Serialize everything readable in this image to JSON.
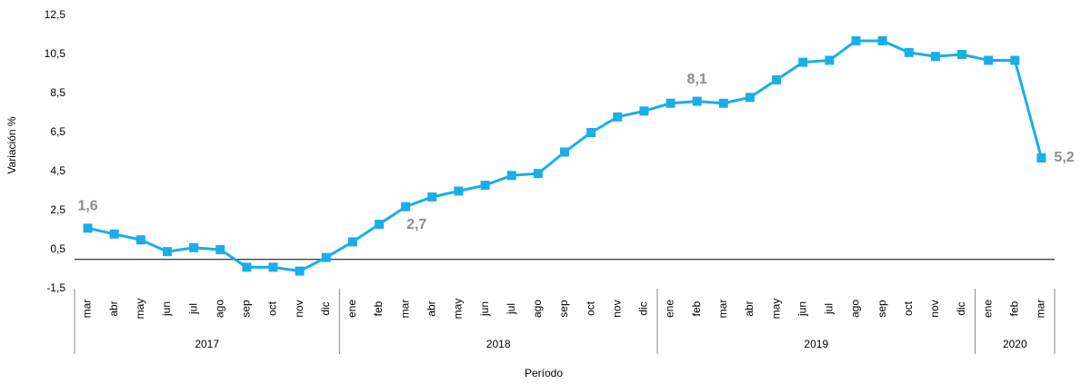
{
  "chart_data": {
    "type": "line",
    "y_label": "Variación %",
    "x_label": "Período",
    "categories": [
      "mar",
      "abr",
      "may",
      "jun",
      "jul",
      "ago",
      "sep",
      "oct",
      "nov",
      "dic",
      "ene",
      "feb",
      "mar",
      "abr",
      "may",
      "jun",
      "jul",
      "ago",
      "sep",
      "oct",
      "nov",
      "dic",
      "ene",
      "feb",
      "mar",
      "abr",
      "may",
      "jun",
      "jul",
      "ago",
      "sep",
      "oct",
      "nov",
      "dic",
      "ene",
      "feb",
      "mar"
    ],
    "years": [
      "2017",
      "2017",
      "2017",
      "2017",
      "2017",
      "2017",
      "2017",
      "2017",
      "2017",
      "2017",
      "2018",
      "2018",
      "2018",
      "2018",
      "2018",
      "2018",
      "2018",
      "2018",
      "2018",
      "2018",
      "2018",
      "2018",
      "2019",
      "2019",
      "2019",
      "2019",
      "2019",
      "2019",
      "2019",
      "2019",
      "2019",
      "2019",
      "2019",
      "2019",
      "2020",
      "2020",
      "2020"
    ],
    "series": [
      {
        "color": "#19aee8",
        "values": [
          1.6,
          1.3,
          1.0,
          0.4,
          0.6,
          0.5,
          -0.4,
          -0.4,
          -0.6,
          0.1,
          0.9,
          1.8,
          2.7,
          3.2,
          3.5,
          3.8,
          4.3,
          4.4,
          5.5,
          6.5,
          7.3,
          7.6,
          8.0,
          8.1,
          8.0,
          8.3,
          9.2,
          10.1,
          10.2,
          11.2,
          11.2,
          10.6,
          10.4,
          10.5,
          10.2,
          10.2,
          5.2
        ],
        "value_labels": [
          "1,6",
          null,
          null,
          null,
          null,
          null,
          null,
          null,
          null,
          null,
          null,
          null,
          "2,7",
          null,
          null,
          null,
          null,
          null,
          null,
          null,
          null,
          null,
          null,
          "8,1",
          null,
          null,
          null,
          null,
          null,
          null,
          null,
          null,
          null,
          null,
          null,
          null,
          "5,2"
        ]
      }
    ],
    "ylim": [
      -1.5,
      12.5
    ],
    "yticks": [
      {
        "value": -1.5,
        "label": "-1,5"
      },
      {
        "value": 0.5,
        "label": "0,5"
      },
      {
        "value": 2.5,
        "label": "2,5"
      },
      {
        "value": 4.5,
        "label": "4,5"
      },
      {
        "value": 6.5,
        "label": "6,5"
      },
      {
        "value": 8.5,
        "label": "8,5"
      },
      {
        "value": 10.5,
        "label": "10,5"
      },
      {
        "value": 12.5,
        "label": "12,5"
      }
    ]
  }
}
